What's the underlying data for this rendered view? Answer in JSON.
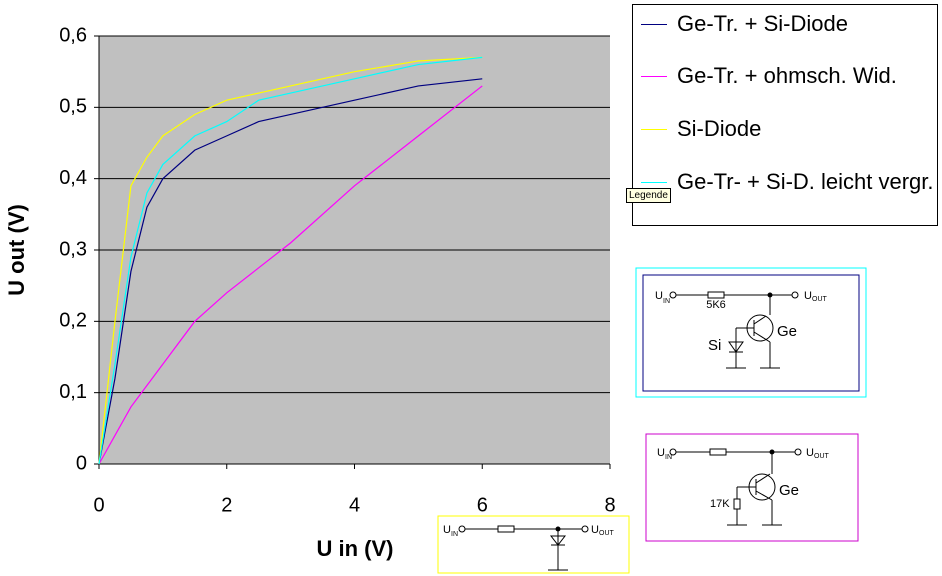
{
  "chart_data": {
    "type": "line",
    "xlabel": "U in (V)",
    "ylabel": "U out (V)",
    "x": [
      0,
      0.25,
      0.5,
      0.75,
      1,
      1.5,
      2,
      2.5,
      3,
      4,
      5,
      6
    ],
    "series": [
      {
        "name": "Ge-Tr. + Si-Diode",
        "color": "#000080",
        "values": [
          0,
          0.12,
          0.27,
          0.36,
          0.4,
          0.44,
          0.46,
          0.48,
          0.49,
          0.51,
          0.53,
          0.54
        ]
      },
      {
        "name": "Ge-Tr. + ohmsch. Wid.",
        "color": "#ff00ff",
        "values": [
          0,
          0.04,
          0.08,
          0.11,
          0.14,
          0.2,
          0.24,
          0.275,
          0.31,
          0.39,
          0.46,
          0.53
        ]
      },
      {
        "name": "Si-Diode",
        "color": "#ffff00",
        "values": [
          0,
          0.2,
          0.39,
          0.43,
          0.46,
          0.49,
          0.51,
          0.52,
          0.53,
          0.55,
          0.565,
          0.57
        ]
      },
      {
        "name": "Ge-Tr- + Si-D. leicht vergr.",
        "color": "#00ffff",
        "values": [
          0,
          0.14,
          0.29,
          0.38,
          0.42,
          0.46,
          0.48,
          0.51,
          0.52,
          0.54,
          0.56,
          0.57
        ]
      }
    ],
    "xlim": [
      0,
      8
    ],
    "xticks": [
      0,
      2,
      4,
      6,
      8
    ],
    "ylim": [
      0,
      0.6
    ],
    "yticks": [
      0,
      {
        "value": 0.1,
        "label": "0,1"
      },
      {
        "value": 0.2,
        "label": "0,2"
      },
      {
        "value": 0.3,
        "label": "0,3"
      },
      {
        "value": 0.4,
        "label": "0,4"
      },
      {
        "value": 0.5,
        "label": "0,5"
      },
      {
        "value": 0.6,
        "label": "0,6"
      }
    ],
    "grid": true,
    "plot_background": "#c0c0c0"
  },
  "tooltip": "Legende",
  "diagrams": [
    {
      "u": "U",
      "in": "IN",
      "out": "OUT",
      "resistor": "5K6",
      "diode": "Si",
      "transistor": "Ge"
    },
    {
      "u": "U",
      "in": "IN",
      "out": "OUT",
      "resistor": "17K",
      "transistor": "Ge"
    },
    {
      "u": "U",
      "in": "IN",
      "out": "OUT"
    }
  ]
}
